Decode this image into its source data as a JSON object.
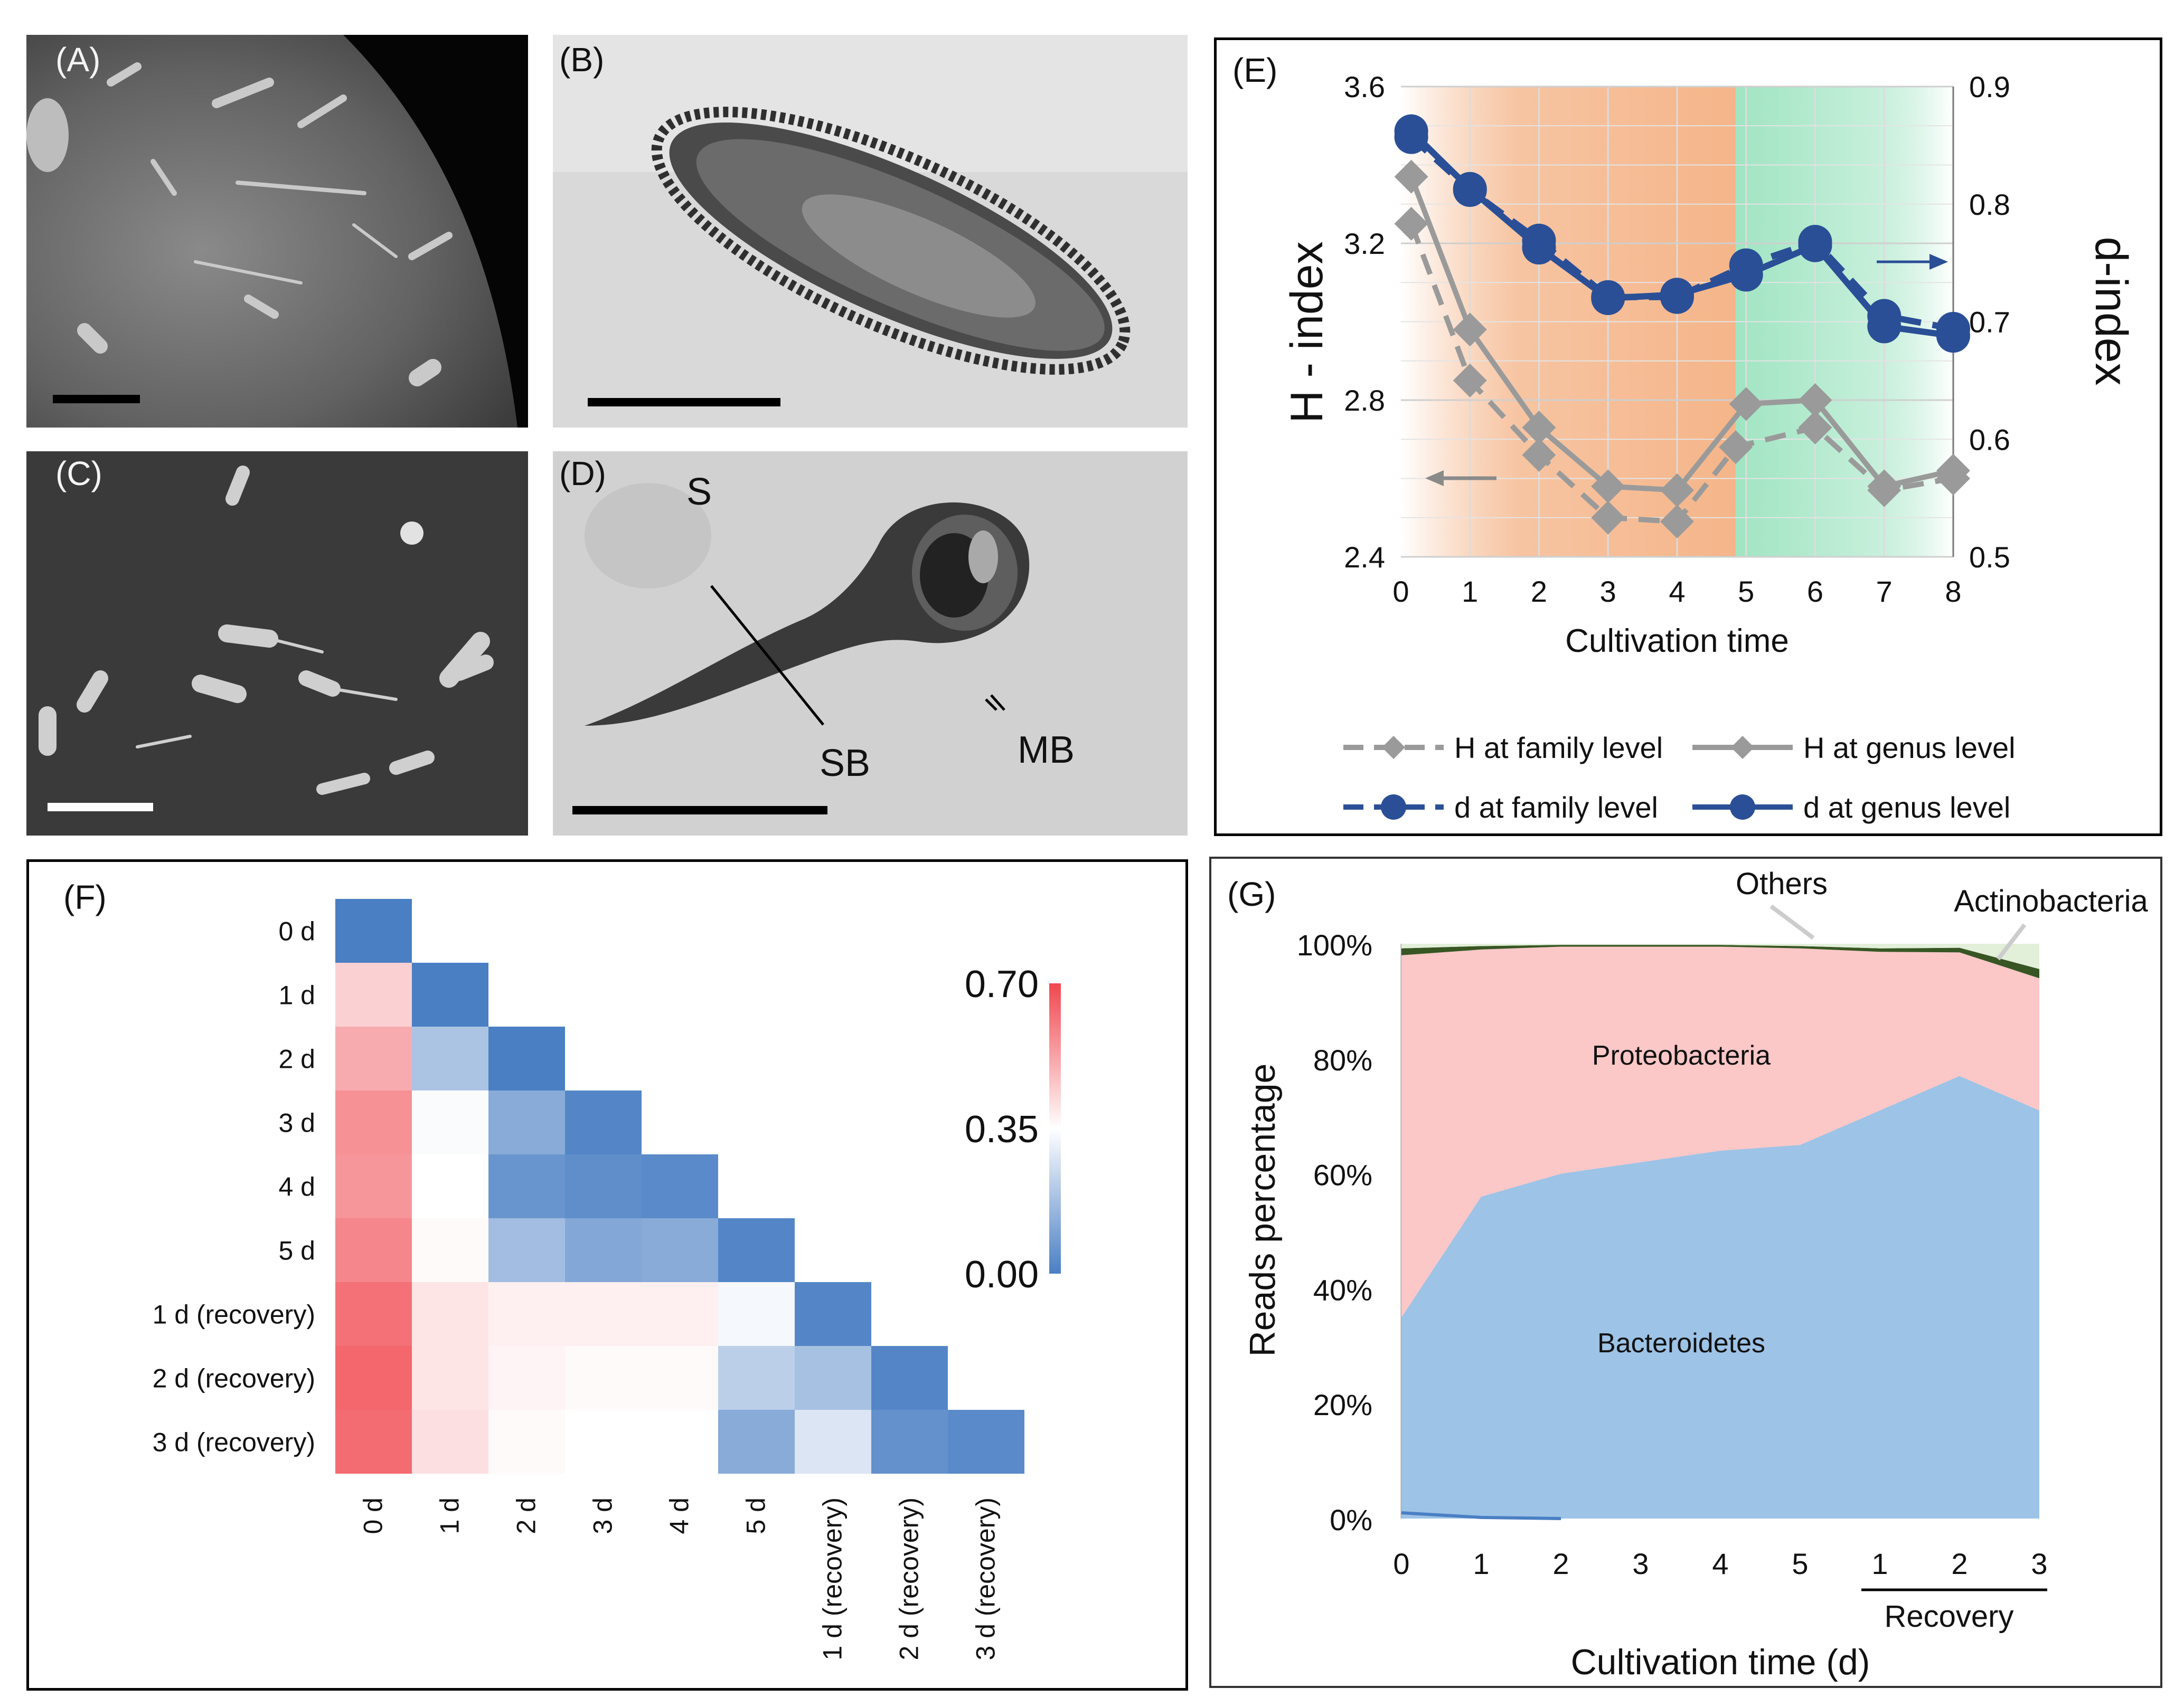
{
  "panels": {
    "a": {
      "label": "(A)"
    },
    "b": {
      "label": "(B)"
    },
    "c": {
      "label": "(C)"
    },
    "d": {
      "label": "(D)",
      "annotations": {
        "s": "S",
        "sb": "SB",
        "mb": "MB"
      }
    },
    "e": {
      "label": "(E)"
    },
    "f": {
      "label": "(F)"
    },
    "g": {
      "label": "(G)"
    }
  },
  "colors": {
    "blue": "#2a4f96",
    "gray": "#9a9a9a",
    "heat_low": "#4a7fc4",
    "heat_mid": "#ffffff",
    "heat_high": "#f0474f",
    "proteobacteria": "#fbc7c7",
    "bacteroidetes": "#9dc3e6",
    "others": "#e2efd9",
    "actinobacteria": "#375623",
    "band_orange": "#f4b183",
    "band_green": "#9be3bf"
  },
  "chart_data": [
    {
      "id": "E",
      "type": "line",
      "xlabel": "Cultivation time",
      "ylabel_left": "H - index",
      "ylabel_right": "d-index",
      "x": [
        0,
        1,
        2,
        3,
        4,
        5,
        6,
        7,
        8
      ],
      "x_ticks": [
        "0",
        "1",
        "2",
        "3",
        "4",
        "5",
        "6",
        "7",
        "8"
      ],
      "ylim_left": [
        2.4,
        3.6
      ],
      "y_ticks_left": [
        "2.4",
        "2.8",
        "3.2",
        "3.6"
      ],
      "ylim_right": [
        0.5,
        0.9
      ],
      "y_ticks_right": [
        "0.5",
        "0.6",
        "0.7",
        "0.8",
        "0.9"
      ],
      "grid": true,
      "shaded_bands": [
        {
          "from": 0,
          "to": 4.85,
          "color": "orange"
        },
        {
          "from": 4.85,
          "to": 8,
          "color": "green"
        }
      ],
      "series": [
        {
          "name": "H at family level",
          "axis": "left",
          "style": "dashed",
          "marker": "diamond",
          "color": "gray",
          "x": [
            0.15,
            1,
            2,
            3,
            4,
            4.85,
            6,
            7,
            8
          ],
          "values": [
            3.25,
            2.85,
            2.66,
            2.5,
            2.49,
            2.68,
            2.73,
            2.57,
            2.6
          ]
        },
        {
          "name": "H at genus level",
          "axis": "left",
          "style": "solid",
          "marker": "diamond",
          "color": "gray",
          "x": [
            0.15,
            1,
            2,
            3,
            4,
            5,
            6,
            7,
            8
          ],
          "values": [
            3.37,
            2.98,
            2.73,
            2.58,
            2.57,
            2.79,
            2.8,
            2.58,
            2.62
          ]
        },
        {
          "name": "d at family level",
          "axis": "right",
          "style": "dashed",
          "marker": "circle",
          "color": "blue",
          "x": [
            0.15,
            1,
            2,
            3,
            4,
            5,
            6,
            7,
            8
          ],
          "values": [
            0.857,
            0.812,
            0.769,
            0.721,
            0.721,
            0.748,
            0.768,
            0.705,
            0.694
          ]
        },
        {
          "name": "d at genus level",
          "axis": "right",
          "style": "solid",
          "marker": "circle",
          "color": "blue",
          "x": [
            0.15,
            1,
            2,
            3,
            4,
            5,
            6,
            7,
            8
          ],
          "values": [
            0.862,
            0.813,
            0.763,
            0.72,
            0.723,
            0.74,
            0.765,
            0.696,
            0.688
          ]
        }
      ]
    },
    {
      "id": "F",
      "type": "heatmap",
      "labels": [
        "0 d",
        "1 d",
        "2 d",
        "3 d",
        "4 d",
        "5 d",
        "1 d (recovery)",
        "2 d (recovery)",
        "3 d (recovery)"
      ],
      "colorbar": {
        "min": 0.0,
        "max": 0.7,
        "ticks": [
          "0.00",
          "0.35",
          "0.70"
        ]
      },
      "matrix": [
        [
          0.0
        ],
        [
          0.44,
          0.0
        ],
        [
          0.51,
          0.19,
          0.0
        ],
        [
          0.56,
          0.34,
          0.12,
          0.02
        ],
        [
          0.55,
          0.35,
          0.06,
          0.04,
          0.03
        ],
        [
          0.58,
          0.36,
          0.17,
          0.11,
          0.12,
          0.02
        ],
        [
          0.62,
          0.4,
          0.38,
          0.38,
          0.38,
          0.33,
          0.02
        ],
        [
          0.64,
          0.4,
          0.37,
          0.36,
          0.36,
          0.22,
          0.18,
          0.02
        ],
        [
          0.63,
          0.41,
          0.36,
          0.35,
          0.35,
          0.12,
          0.28,
          0.05,
          0.03
        ]
      ]
    },
    {
      "id": "G",
      "type": "area",
      "xlabel": "Cultivation time (d)",
      "ylabel": "Reads percentage",
      "x_ticks": [
        "0",
        "1",
        "2",
        "3",
        "4",
        "5",
        "1",
        "2",
        "3"
      ],
      "recovery_label": "Recovery",
      "y_ticks": [
        "0%",
        "20%",
        "40%",
        "60%",
        "80%",
        "100%"
      ],
      "ylim": [
        0,
        100
      ],
      "series": [
        {
          "name": "Bacteroidetes",
          "color": "bacteroidetes",
          "values": [
            35,
            56,
            60,
            62,
            64,
            65,
            71,
            77,
            71
          ]
        },
        {
          "name": "Proteobacteria",
          "color": "proteobacteria",
          "values": [
            63,
            43,
            39.5,
            37.5,
            35.5,
            34.2,
            27.6,
            21.5,
            23
          ]
        },
        {
          "name": "Actinobacteria",
          "color": "actinobacteria",
          "values": [
            1.2,
            0.6,
            0.3,
            0.3,
            0.3,
            0.4,
            0.6,
            0.8,
            1.6
          ]
        },
        {
          "name": "Others",
          "color": "others",
          "values": [
            0.8,
            0.4,
            0.2,
            0.2,
            0.2,
            0.4,
            0.8,
            0.7,
            4.4
          ]
        }
      ],
      "annotations": [
        "Others",
        "Actinobacteria",
        "Proteobacteria",
        "Bacteroidetes"
      ]
    }
  ]
}
